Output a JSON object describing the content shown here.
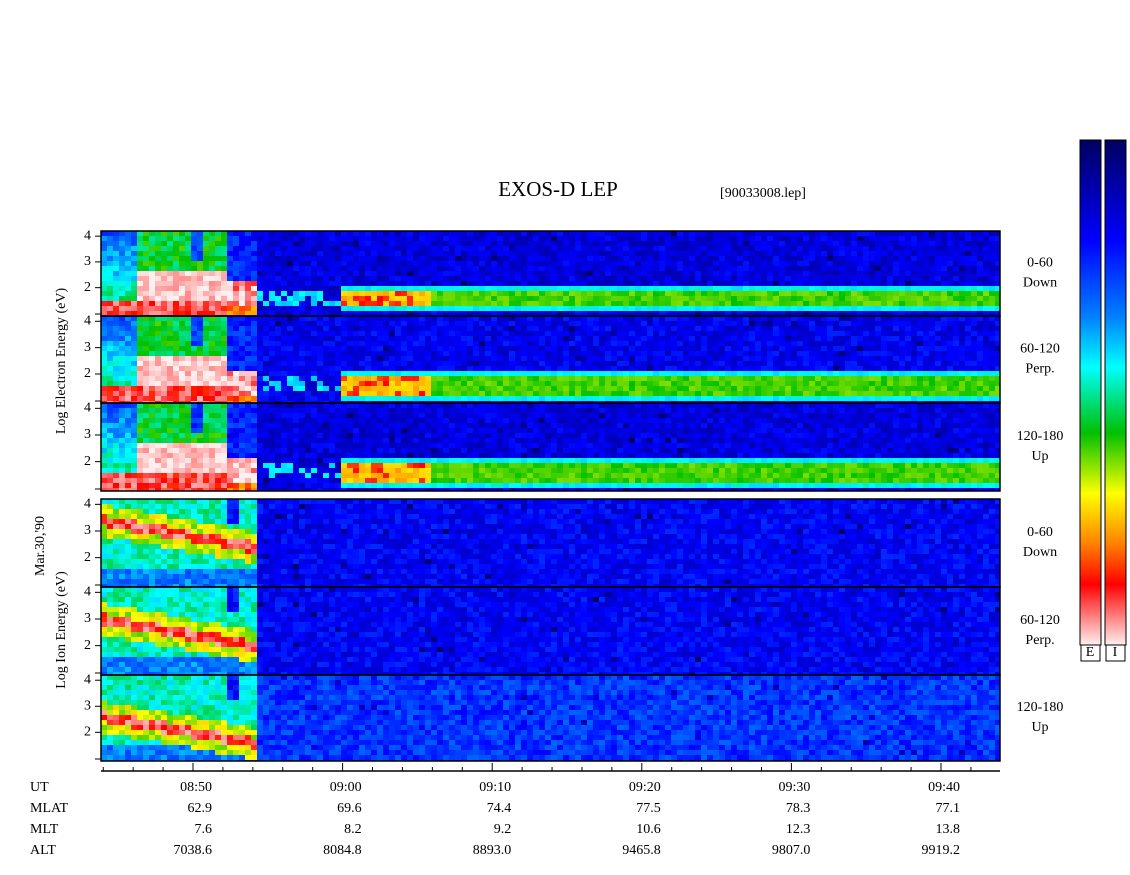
{
  "header": {
    "title": "EXOS-D LEP",
    "file": "[90033008.lep]"
  },
  "date": "Mar.30,'90",
  "electron_axis_label": "Log  Electron  Energy  (eV)",
  "ion_axis_label": "Log  Ion  Energy  (eV)",
  "energy_tick_labels": [
    "2",
    "3",
    "4"
  ],
  "pitch_angle_labels": [
    {
      "range": "0-60",
      "direction": "Down"
    },
    {
      "range": "60-120",
      "direction": "Perp."
    },
    {
      "range": "120-180",
      "direction": "Up"
    }
  ],
  "colorbar_labels": [
    "E",
    "I"
  ],
  "time_table": {
    "rows": [
      {
        "label": "UT",
        "values": [
          "08:50",
          "09:00",
          "09:10",
          "09:20",
          "09:30",
          "09:40"
        ]
      },
      {
        "label": "MLAT",
        "values": [
          "62.9",
          "69.6",
          "74.4",
          "77.5",
          "78.3",
          "77.1"
        ]
      },
      {
        "label": "MLT",
        "values": [
          "7.6",
          "8.2",
          "9.2",
          "10.6",
          "12.3",
          "13.8"
        ]
      },
      {
        "label": "ALT",
        "values": [
          "7038.6",
          "8084.8",
          "8893.0",
          "9465.8",
          "9807.0",
          "9919.2"
        ]
      }
    ]
  }
}
